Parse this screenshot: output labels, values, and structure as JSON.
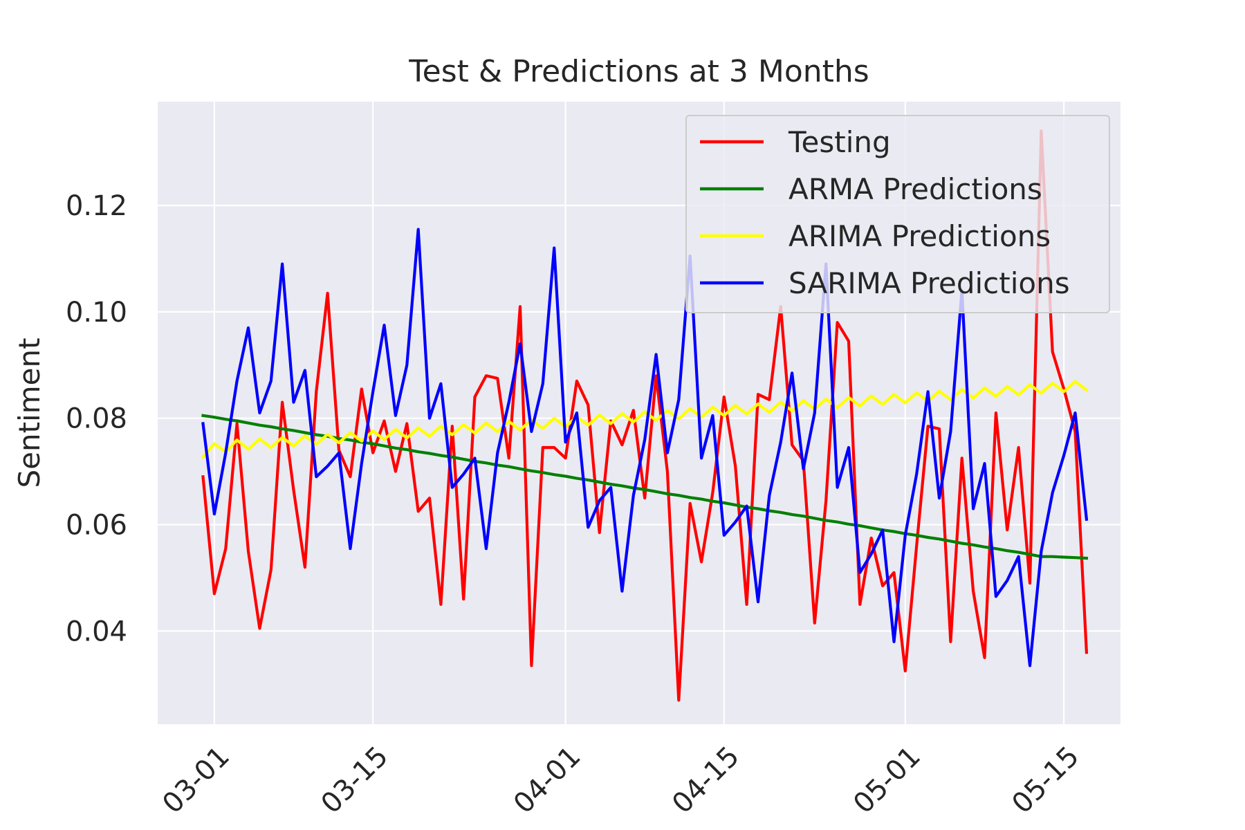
{
  "chart_data": {
    "type": "line",
    "title": "Test & Predictions at 3 Months",
    "xlabel": "",
    "ylabel": "Sentiment",
    "grid": true,
    "legend_position": "top-right",
    "x_start": "2021-02-28",
    "x_ticks": [
      {
        "value": "2021-03-01",
        "label": "03-01"
      },
      {
        "value": "2021-03-15",
        "label": "03-15"
      },
      {
        "value": "2021-04-01",
        "label": "04-01"
      },
      {
        "value": "2021-04-15",
        "label": "04-15"
      },
      {
        "value": "2021-05-01",
        "label": "05-01"
      },
      {
        "value": "2021-05-15",
        "label": "05-15"
      }
    ],
    "xlim": [
      "2021-02-24",
      "2021-05-20"
    ],
    "ylim": [
      0.0225,
      0.1395
    ],
    "y_ticks": [
      {
        "value": 0.04,
        "label": "0.04"
      },
      {
        "value": 0.06,
        "label": "0.06"
      },
      {
        "value": 0.08,
        "label": "0.08"
      },
      {
        "value": 0.1,
        "label": "0.10"
      },
      {
        "value": 0.12,
        "label": "0.12"
      }
    ],
    "series": [
      {
        "name": "Testing",
        "color": "#ff0000",
        "values": [
          0.069,
          0.047,
          0.0555,
          0.079,
          0.055,
          0.0405,
          0.0515,
          0.083,
          0.0665,
          0.052,
          0.085,
          0.1035,
          0.074,
          0.069,
          0.0855,
          0.0735,
          0.0795,
          0.07,
          0.079,
          0.0625,
          0.065,
          0.045,
          0.0785,
          0.046,
          0.084,
          0.088,
          0.0875,
          0.0725,
          0.101,
          0.0335,
          0.0745,
          0.0745,
          0.0725,
          0.087,
          0.0825,
          0.0585,
          0.0795,
          0.075,
          0.0815,
          0.065,
          0.088,
          0.07,
          0.027,
          0.064,
          0.053,
          0.066,
          0.084,
          0.071,
          0.045,
          0.0845,
          0.0835,
          0.101,
          0.075,
          0.072,
          0.0415,
          0.0645,
          0.098,
          0.0945,
          0.045,
          0.0575,
          0.0485,
          0.051,
          0.0325,
          0.056,
          0.0785,
          0.078,
          0.038,
          0.0725,
          0.0475,
          0.035,
          0.081,
          0.059,
          0.0745,
          0.049,
          0.134,
          0.0925,
          0.0855,
          0.0775,
          0.036
        ]
      },
      {
        "name": "ARMA Predictions",
        "color": "#008000",
        "values": [
          0.0805,
          0.0802,
          0.0798,
          0.0795,
          0.0791,
          0.0787,
          0.0784,
          0.078,
          0.0777,
          0.0773,
          0.0769,
          0.0766,
          0.0762,
          0.0759,
          0.0755,
          0.0752,
          0.0748,
          0.0744,
          0.0741,
          0.0737,
          0.0734,
          0.073,
          0.0727,
          0.0723,
          0.0719,
          0.0716,
          0.0712,
          0.0709,
          0.0705,
          0.0701,
          0.0698,
          0.0694,
          0.0691,
          0.0687,
          0.0684,
          0.068,
          0.0676,
          0.0673,
          0.0669,
          0.0666,
          0.0662,
          0.0658,
          0.0655,
          0.0651,
          0.0648,
          0.0644,
          0.0641,
          0.0637,
          0.0633,
          0.063,
          0.0626,
          0.0623,
          0.0619,
          0.0616,
          0.0612,
          0.0608,
          0.0605,
          0.0601,
          0.0598,
          0.0594,
          0.059,
          0.0587,
          0.0583,
          0.058,
          0.0576,
          0.0573,
          0.0569,
          0.0565,
          0.0562,
          0.0558,
          0.0555,
          0.0551,
          0.0548,
          0.0544,
          0.054,
          0.054,
          0.0539,
          0.0538,
          0.0537
        ]
      },
      {
        "name": "ARIMA Predictions",
        "color": "#ffff00",
        "values": [
          0.0727,
          0.0752,
          0.0737,
          0.0759,
          0.0742,
          0.0761,
          0.0745,
          0.0764,
          0.0748,
          0.0767,
          0.0751,
          0.077,
          0.0754,
          0.0773,
          0.0757,
          0.0776,
          0.076,
          0.0779,
          0.0763,
          0.0782,
          0.0766,
          0.0785,
          0.0769,
          0.0788,
          0.0772,
          0.0791,
          0.0775,
          0.0794,
          0.0778,
          0.0797,
          0.0781,
          0.08,
          0.0784,
          0.0803,
          0.0787,
          0.0806,
          0.079,
          0.0809,
          0.0793,
          0.0812,
          0.0796,
          0.0815,
          0.0799,
          0.0818,
          0.0802,
          0.0821,
          0.0805,
          0.0824,
          0.0808,
          0.0827,
          0.0811,
          0.083,
          0.0814,
          0.0833,
          0.0817,
          0.0836,
          0.082,
          0.0839,
          0.0823,
          0.0842,
          0.0826,
          0.0845,
          0.0829,
          0.0848,
          0.0832,
          0.0851,
          0.0835,
          0.0854,
          0.0838,
          0.0857,
          0.0841,
          0.086,
          0.0844,
          0.0863,
          0.0847,
          0.0866,
          0.085,
          0.0869,
          0.0853
        ]
      },
      {
        "name": "SARIMA Predictions",
        "color": "#0000ff",
        "values": [
          0.079,
          0.062,
          0.0735,
          0.087,
          0.097,
          0.081,
          0.087,
          0.109,
          0.083,
          0.089,
          0.069,
          0.071,
          0.0735,
          0.0555,
          0.0715,
          0.085,
          0.0975,
          0.0805,
          0.09,
          0.1155,
          0.08,
          0.0865,
          0.067,
          0.0695,
          0.0725,
          0.0555,
          0.0735,
          0.083,
          0.094,
          0.0775,
          0.0865,
          0.112,
          0.0755,
          0.081,
          0.0595,
          0.0645,
          0.067,
          0.0475,
          0.0655,
          0.076,
          0.092,
          0.0735,
          0.0835,
          0.1105,
          0.0725,
          0.0805,
          0.058,
          0.0605,
          0.0635,
          0.0455,
          0.0655,
          0.0755,
          0.0885,
          0.0705,
          0.081,
          0.109,
          0.067,
          0.0745,
          0.051,
          0.0545,
          0.059,
          0.038,
          0.058,
          0.0695,
          0.085,
          0.065,
          0.0775,
          0.104,
          0.063,
          0.0715,
          0.0465,
          0.0495,
          0.054,
          0.0335,
          0.055,
          0.066,
          0.073,
          0.081,
          0.061
        ]
      }
    ]
  }
}
